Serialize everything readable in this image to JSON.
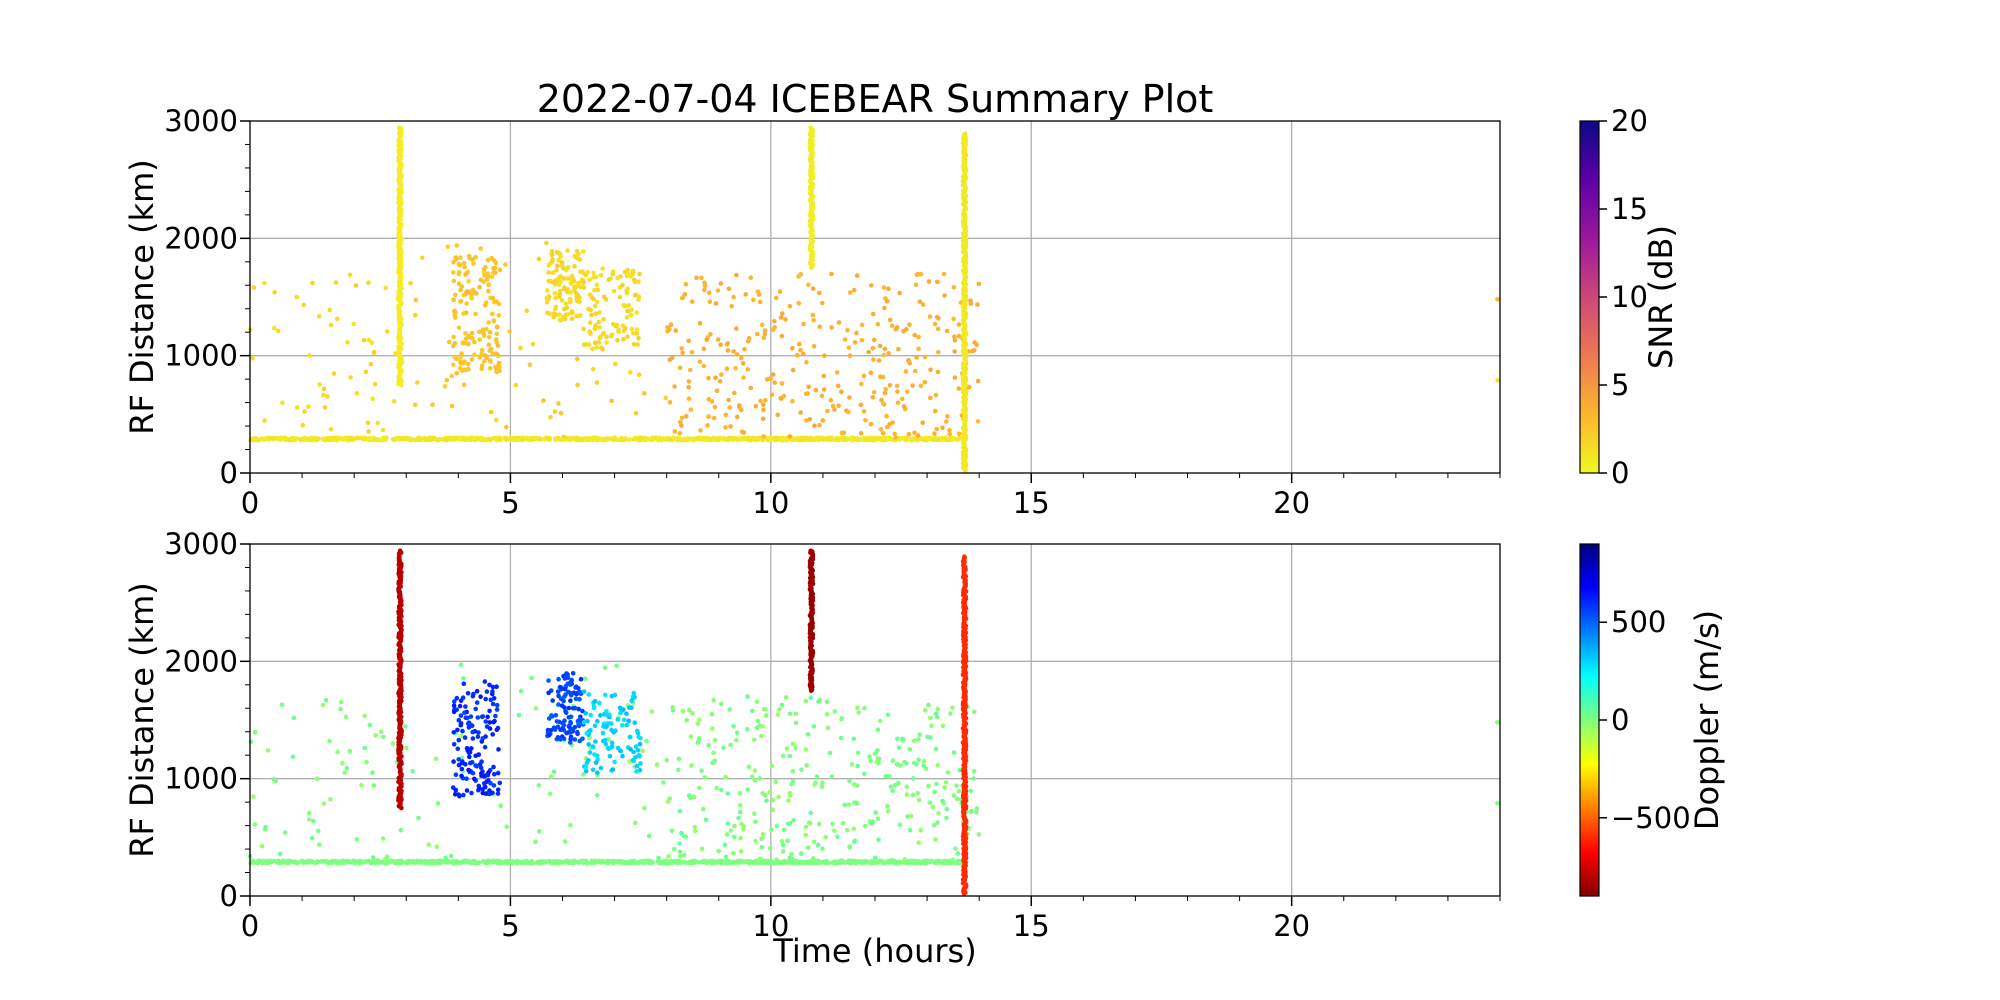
{
  "chart_data": {
    "type": "scatter",
    "title": "2022-07-04 ICEBEAR Summary Plot",
    "xlabel": "Time (hours)",
    "xlim": [
      0,
      24
    ],
    "xticks": [
      0,
      5,
      10,
      15,
      20
    ],
    "grid": true,
    "panels": [
      {
        "id": "snr",
        "ylabel": "RF Distance (km)",
        "ylim": [
          0,
          3000
        ],
        "yticks": [
          0,
          1000,
          2000,
          3000
        ],
        "colorbar": {
          "label": "SNR (dB)",
          "range": [
            0,
            20
          ],
          "ticks": [
            0,
            5,
            10,
            15,
            20
          ],
          "tick_labels": [
            "0",
            "5",
            "10",
            "15",
            "20"
          ],
          "colormap": "plasma_r",
          "stops": [
            "#f0f921",
            "#fdb42f",
            "#ed7953",
            "#cc4778",
            "#9c179e",
            "#5c01a6",
            "#0d0887"
          ]
        },
        "default_value": 1.5,
        "features": [
          {
            "kind": "band",
            "t": [
              0.0,
              13.75
            ],
            "range": [
              280,
              300
            ],
            "value": 0.8,
            "density": 70
          },
          {
            "kind": "scatter",
            "t": [
              0.0,
              3.0
            ],
            "range": [
              300,
              1700
            ],
            "value": 1.5,
            "count": 55
          },
          {
            "kind": "scatter",
            "t": [
              3.0,
              8.0
            ],
            "range": [
              300,
              2000
            ],
            "value": 2.0,
            "count": 60
          },
          {
            "kind": "scatter",
            "t": [
              8.0,
              14.0
            ],
            "range": [
              300,
              1700
            ],
            "value": 3.5,
            "count": 330
          },
          {
            "kind": "column",
            "t": 2.88,
            "range": [
              750,
              2950
            ],
            "value": 0.6
          },
          {
            "kind": "column",
            "t": 10.78,
            "range": [
              1750,
              2950
            ],
            "value": 0.6
          },
          {
            "kind": "column",
            "t": 13.72,
            "range": [
              20,
              2900
            ],
            "value": 0.8
          },
          {
            "kind": "patch",
            "t": [
              3.9,
              4.8
            ],
            "range": [
              850,
              1850
            ],
            "value": 2.5,
            "count": 150
          },
          {
            "kind": "patch",
            "t": [
              5.7,
              6.4
            ],
            "range": [
              1300,
              1900
            ],
            "value": 1.5,
            "count": 110
          },
          {
            "kind": "patch",
            "t": [
              6.4,
              7.5
            ],
            "range": [
              1050,
              1750
            ],
            "value": 1.5,
            "count": 110
          },
          {
            "kind": "point",
            "t": 23.95,
            "range": 1480,
            "value": 3.0
          },
          {
            "kind": "point",
            "t": 23.95,
            "range": 790,
            "value": 1.0
          }
        ]
      },
      {
        "id": "doppler",
        "ylabel": "RF Distance (km)",
        "ylim": [
          0,
          3000
        ],
        "yticks": [
          0,
          1000,
          2000,
          3000
        ],
        "colorbar": {
          "label": "Doppler (m/s)",
          "range": [
            -900,
            900
          ],
          "ticks": [
            -500,
            0,
            500
          ],
          "tick_labels": [
            "−500",
            "0",
            "500"
          ],
          "colormap": "jet_r",
          "stops": [
            "#7f0000",
            "#ff0000",
            "#ff7f00",
            "#ffff00",
            "#7fff7f",
            "#00ffff",
            "#007fff",
            "#0000ff",
            "#00007f"
          ]
        },
        "default_value": 0,
        "features": [
          {
            "kind": "band",
            "t": [
              0.0,
              13.75
            ],
            "range": [
              280,
              300
            ],
            "value": 0,
            "density": 70
          },
          {
            "kind": "scatter",
            "t": [
              0.0,
              3.0
            ],
            "range": [
              300,
              1700
            ],
            "value": 0,
            "count": 55
          },
          {
            "kind": "scatter",
            "t": [
              3.0,
              8.0
            ],
            "range": [
              300,
              2000
            ],
            "value": 0,
            "count": 60
          },
          {
            "kind": "scatter",
            "t": [
              8.0,
              14.0
            ],
            "range": [
              300,
              1700
            ],
            "value": 0,
            "count": 330
          },
          {
            "kind": "column",
            "t": 2.88,
            "range": [
              750,
              2950
            ],
            "value": -800
          },
          {
            "kind": "column",
            "t": 10.78,
            "range": [
              1750,
              2950
            ],
            "value": -850
          },
          {
            "kind": "column",
            "t": 13.72,
            "range": [
              20,
              2900
            ],
            "value": -600
          },
          {
            "kind": "patch",
            "t": [
              3.9,
              4.8
            ],
            "range": [
              850,
              1850
            ],
            "value": 600,
            "count": 150
          },
          {
            "kind": "patch",
            "t": [
              5.7,
              6.4
            ],
            "range": [
              1300,
              1900
            ],
            "value": 550,
            "count": 110
          },
          {
            "kind": "patch",
            "t": [
              6.4,
              7.5
            ],
            "range": [
              1050,
              1750
            ],
            "value": 300,
            "count": 110
          },
          {
            "kind": "point",
            "t": 23.95,
            "range": 1480,
            "value": 0
          },
          {
            "kind": "point",
            "t": 23.95,
            "range": 790,
            "value": 0
          }
        ]
      }
    ]
  }
}
